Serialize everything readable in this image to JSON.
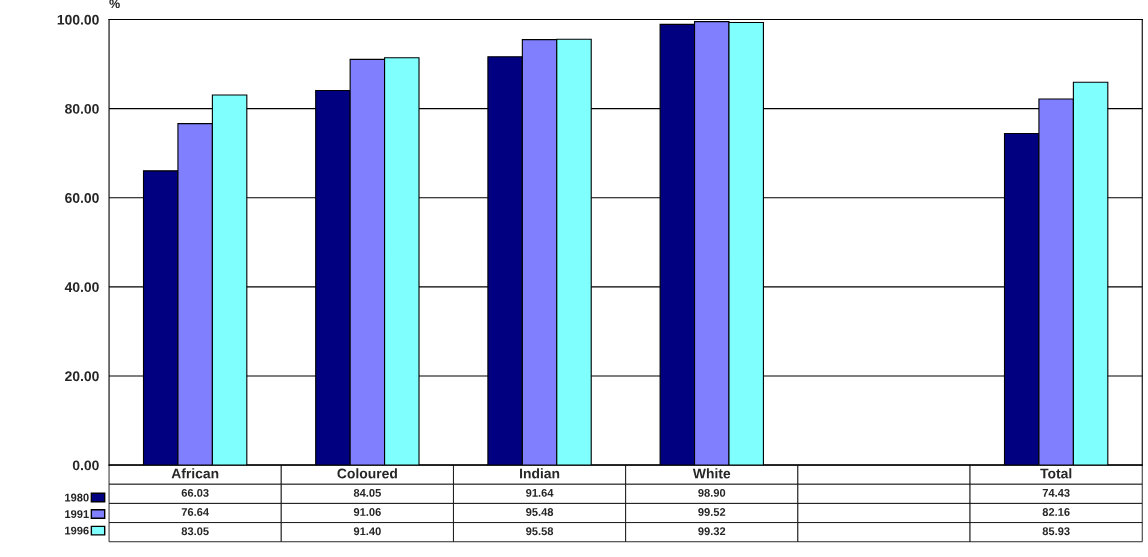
{
  "chart_data": {
    "type": "bar",
    "ylabel": "%",
    "categories": [
      "African",
      "Coloured",
      "Indian",
      "White",
      null,
      "Total"
    ],
    "series": [
      {
        "name": "1980",
        "color": "#000080",
        "values": [
          66.03,
          84.05,
          91.64,
          98.9,
          null,
          74.43
        ],
        "value_labels": [
          "66.03",
          "84.05",
          "91.64",
          "98.90",
          null,
          "74.43"
        ]
      },
      {
        "name": "1991",
        "color": "#8080ff",
        "values": [
          76.64,
          91.06,
          95.48,
          99.52,
          null,
          82.16
        ],
        "value_labels": [
          "76.64",
          "91.06",
          "95.48",
          "99.52",
          null,
          "82.16"
        ]
      },
      {
        "name": "1996",
        "color": "#80ffff",
        "values": [
          83.05,
          91.4,
          95.58,
          99.32,
          null,
          85.93
        ],
        "value_labels": [
          "83.05",
          "91.40",
          "95.58",
          "99.32",
          null,
          "85.93"
        ]
      }
    ],
    "ylim": [
      0,
      100
    ],
    "yticks": [
      {
        "value": 0,
        "label": "0.00"
      },
      {
        "value": 20,
        "label": "20.00"
      },
      {
        "value": 40,
        "label": "40.00"
      },
      {
        "value": 60,
        "label": "60.00"
      },
      {
        "value": 80,
        "label": "80.00"
      },
      {
        "value": 100,
        "label": "100.00"
      }
    ],
    "grid": "y",
    "legend": "bottom left"
  }
}
